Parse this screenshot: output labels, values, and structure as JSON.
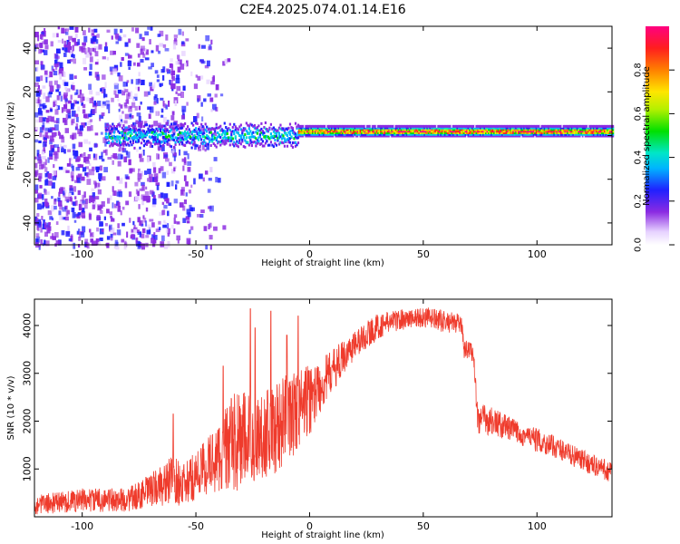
{
  "figure_title": "C2E4.2025.074.01.14.E16",
  "chart_data": [
    {
      "type": "heatmap",
      "title": "C2E4.2025.074.01.14.E16",
      "xlabel": "Height of straight line (km)",
      "ylabel": "Frequency (Hz)",
      "xlim": [
        -121,
        133
      ],
      "ylim": [
        -50,
        50
      ],
      "x_ticks": [
        "-100",
        "-50",
        "0",
        "50",
        "100"
      ],
      "x_tick_values": [
        -100,
        -50,
        0,
        50,
        100
      ],
      "y_ticks": [
        "40",
        "20",
        "0",
        "-20",
        "-40"
      ],
      "y_tick_values": [
        40,
        20,
        0,
        -20,
        -40
      ],
      "colorbar": {
        "label": "Normalized spectral amplitude",
        "range": [
          0,
          1
        ],
        "ticks": [
          "0.0",
          "0.2",
          "0.4",
          "0.6",
          "0.8"
        ],
        "tick_values": [
          0.0,
          0.2,
          0.4,
          0.6,
          0.8
        ],
        "colormap": "rainbow (white-violet-blue-cyan-green-yellow-red-magenta)"
      },
      "features": [
        {
          "description": "broadband scattered noise",
          "x_range": [
            -121,
            -60
          ],
          "y_range": [
            -50,
            50
          ],
          "amplitude": 0.1
        },
        {
          "description": "narrow band",
          "x_range": [
            -90,
            -5
          ],
          "y_center": 0,
          "amplitude": 0.4
        },
        {
          "description": "strong band",
          "x_range": [
            -5,
            133
          ],
          "y_center": 2,
          "amplitude": 0.9
        }
      ]
    },
    {
      "type": "line",
      "xlabel": "Height of straight line (km)",
      "ylabel": "SNR (10 * v/v)",
      "xlim": [
        -121,
        133
      ],
      "ylim": [
        0,
        4550
      ],
      "x_ticks": [
        "-100",
        "-50",
        "0",
        "50",
        "100"
      ],
      "x_tick_values": [
        -100,
        -50,
        0,
        50,
        100
      ],
      "y_ticks": [
        "1000",
        "2000",
        "3000",
        "4000"
      ],
      "y_tick_values": [
        1000,
        2000,
        3000,
        4000
      ],
      "color": "#ef3b2c",
      "envelope": {
        "x": [
          -121,
          -100,
          -80,
          -70,
          -60,
          -55,
          -50,
          -45,
          -40,
          -35,
          -30,
          -25,
          -20,
          -15,
          -10,
          -5,
          0,
          5,
          10,
          15,
          20,
          25,
          30,
          35,
          40,
          45,
          50,
          55,
          60,
          65,
          67,
          68,
          70,
          72,
          74,
          80,
          90,
          100,
          110,
          120,
          133
        ],
        "low": [
          50,
          100,
          100,
          200,
          250,
          200,
          350,
          450,
          500,
          550,
          500,
          650,
          800,
          900,
          1100,
          1400,
          1700,
          2200,
          2600,
          3000,
          3300,
          3500,
          3700,
          3850,
          3900,
          3950,
          3950,
          3900,
          3850,
          3850,
          3800,
          3300,
          3300,
          3250,
          1700,
          1700,
          1550,
          1350,
          1200,
          950,
          700
        ],
        "high": [
          450,
          600,
          600,
          900,
          1300,
          1100,
          1400,
          1700,
          2000,
          2500,
          2700,
          2500,
          2700,
          2800,
          3000,
          3100,
          3200,
          3300,
          3500,
          3700,
          3900,
          4100,
          4250,
          4300,
          4350,
          4350,
          4400,
          4350,
          4300,
          4250,
          4150,
          3800,
          3700,
          3600,
          2400,
          2300,
          2050,
          1850,
          1650,
          1400,
          1150
        ]
      },
      "spikes": [
        {
          "x": -60,
          "y": 2150
        },
        {
          "x": -38,
          "y": 3150
        },
        {
          "x": -26,
          "y": 4350
        },
        {
          "x": -24,
          "y": 3950
        },
        {
          "x": -17,
          "y": 4300
        },
        {
          "x": -10,
          "y": 3800
        },
        {
          "x": -5,
          "y": 4200
        }
      ]
    }
  ]
}
